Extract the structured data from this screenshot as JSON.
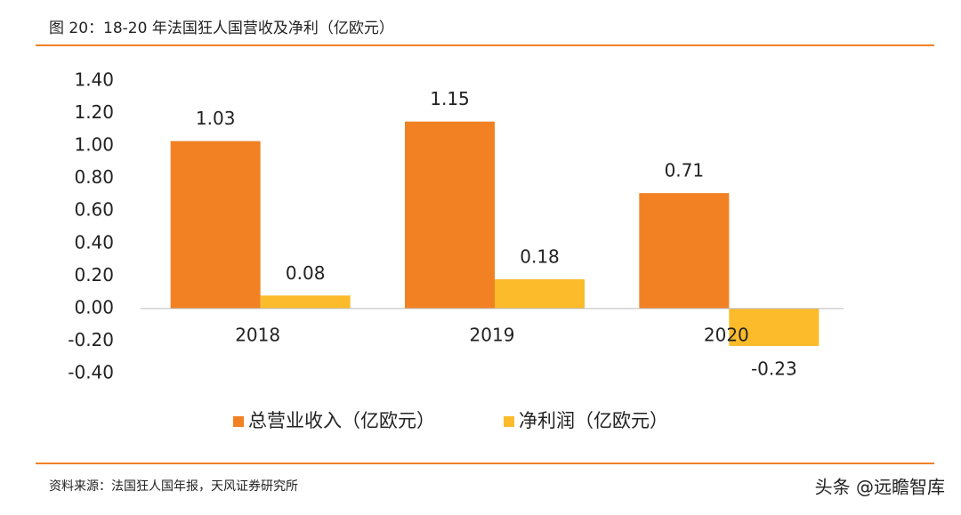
{
  "chart_data": {
    "type": "bar",
    "title": "图 20：18-20 年法国狂人国营收及净利（亿欧元）",
    "categories": [
      "2018",
      "2019",
      "2020"
    ],
    "series": [
      {
        "name": "总营业收入（亿欧元）",
        "color": "#F28123",
        "values": [
          1.03,
          1.15,
          0.71
        ]
      },
      {
        "name": "净利润（亿欧元）",
        "color": "#FBBB2A",
        "values": [
          0.08,
          0.18,
          -0.23
        ]
      }
    ],
    "ylim": [
      -0.4,
      1.4
    ],
    "yticks": [
      {
        "value": -0.4,
        "label": "-0.40"
      },
      {
        "value": -0.2,
        "label": "-0.20"
      },
      {
        "value": 0,
        "label": "0.00"
      },
      {
        "value": 0.2,
        "label": "0.20"
      },
      {
        "value": 0.4,
        "label": "0.40"
      },
      {
        "value": 0.6,
        "label": "0.60"
      },
      {
        "value": 0.8,
        "label": "0.80"
      },
      {
        "value": 1.0,
        "label": "1.00"
      },
      {
        "value": 1.2,
        "label": "1.20"
      },
      {
        "value": 1.4,
        "label": "1.40"
      }
    ],
    "grid": false,
    "legend": "bottom"
  },
  "source": "资料来源：法国狂人国年报，天风证券研究所",
  "watermark": "头条 @远瞻智库"
}
